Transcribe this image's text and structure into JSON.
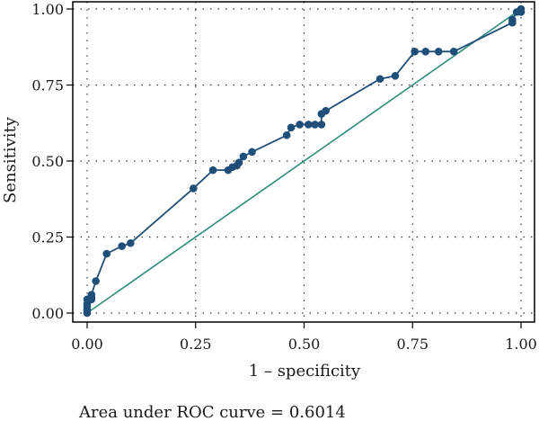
{
  "chart_data": {
    "type": "line",
    "title": "",
    "xlabel": "1 – specificity",
    "ylabel": "Sensitivity",
    "xlim": [
      0,
      1
    ],
    "ylim": [
      0,
      1
    ],
    "xticks": [
      "0.00",
      "0.25",
      "0.50",
      "0.75",
      "1.00"
    ],
    "yticks": [
      "0.00",
      "0.25",
      "0.50",
      "0.75",
      "1.00"
    ],
    "grid": "dotted",
    "series": [
      {
        "color": "#1f4e79",
        "markers": true,
        "points": [
          [
            0.0,
            0.0
          ],
          [
            0.0,
            0.01
          ],
          [
            0.0,
            0.02
          ],
          [
            0.0,
            0.03
          ],
          [
            0.0,
            0.045
          ],
          [
            0.01,
            0.045
          ],
          [
            0.01,
            0.05
          ],
          [
            0.01,
            0.06
          ],
          [
            0.02,
            0.105
          ],
          [
            0.045,
            0.195
          ],
          [
            0.08,
            0.22
          ],
          [
            0.1,
            0.23
          ],
          [
            0.245,
            0.41
          ],
          [
            0.29,
            0.47
          ],
          [
            0.325,
            0.47
          ],
          [
            0.335,
            0.48
          ],
          [
            0.345,
            0.485
          ],
          [
            0.35,
            0.495
          ],
          [
            0.36,
            0.515
          ],
          [
            0.38,
            0.53
          ],
          [
            0.46,
            0.585
          ],
          [
            0.47,
            0.61
          ],
          [
            0.49,
            0.62
          ],
          [
            0.51,
            0.62
          ],
          [
            0.525,
            0.62
          ],
          [
            0.54,
            0.62
          ],
          [
            0.54,
            0.655
          ],
          [
            0.55,
            0.665
          ],
          [
            0.675,
            0.77
          ],
          [
            0.71,
            0.78
          ],
          [
            0.755,
            0.86
          ],
          [
            0.78,
            0.86
          ],
          [
            0.81,
            0.86
          ],
          [
            0.845,
            0.86
          ],
          [
            0.98,
            0.955
          ],
          [
            0.98,
            0.965
          ],
          [
            0.99,
            0.99
          ],
          [
            1.0,
            0.99
          ],
          [
            1.0,
            1.0
          ]
        ]
      },
      {
        "color": "#2e8b7a",
        "markers": false,
        "points": [
          [
            0,
            0
          ],
          [
            1,
            1
          ]
        ]
      }
    ]
  },
  "note": "Area under ROC curve = 0.6014"
}
